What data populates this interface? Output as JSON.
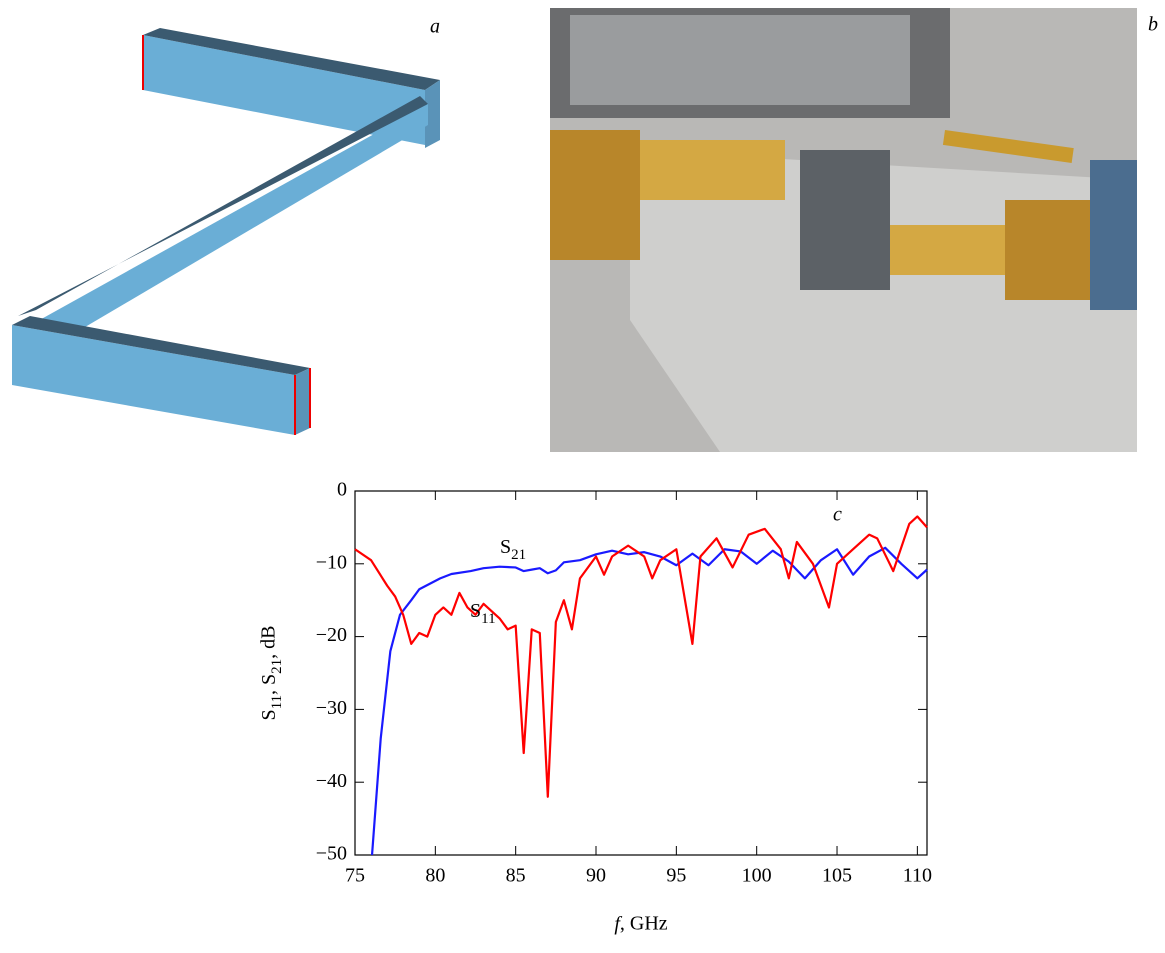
{
  "panel_labels": [
    "a",
    "b"
  ],
  "chart_data": {
    "type": "line",
    "label": "c",
    "xlabel": "f, GHz",
    "ylabel": "S11, S21, dB",
    "xlim": [
      75,
      110.6
    ],
    "ylim": [
      -50,
      0
    ],
    "xticks": [
      75,
      80,
      85,
      90,
      95,
      100,
      105,
      110
    ],
    "yticks": [
      {
        "value": -50,
        "label": "−50"
      },
      {
        "value": -40,
        "label": "−40"
      },
      {
        "value": -30,
        "label": "−30"
      },
      {
        "value": -20,
        "label": "−20"
      },
      {
        "value": -10,
        "label": "−10"
      },
      0
    ],
    "series": [
      {
        "name": "S21",
        "color": "#1a1aff",
        "x": [
          76.06,
          76.6,
          77.2,
          77.8,
          78.5,
          79,
          80.3,
          81,
          82.2,
          83,
          84,
          85,
          85.5,
          86,
          86.5,
          87,
          87.5,
          88,
          89,
          90,
          91,
          92,
          93,
          94,
          95,
          96,
          97,
          98,
          99,
          100,
          101,
          102,
          103,
          104,
          105,
          106,
          107,
          108,
          109,
          110,
          110.6
        ],
        "values": [
          -50,
          -34,
          -22,
          -17,
          -15,
          -13.5,
          -12,
          -11.4,
          -11,
          -10.6,
          -10.4,
          -10.5,
          -11,
          -10.8,
          -10.6,
          -11.3,
          -10.9,
          -9.8,
          -9.5,
          -8.7,
          -8.2,
          -8.7,
          -8.4,
          -9,
          -10.2,
          -8.6,
          -10.2,
          -8,
          -8.3,
          -10,
          -8.2,
          -9.7,
          -12,
          -9.5,
          -8,
          -11.5,
          -9,
          -7.8,
          -10,
          -12,
          -10.8
        ]
      },
      {
        "name": "S11",
        "color": "#ff0000",
        "x": [
          75,
          76,
          77,
          77.5,
          78,
          78.5,
          79,
          79.5,
          80,
          80.5,
          81,
          81.5,
          82,
          82.5,
          83,
          84,
          84.5,
          85,
          85.5,
          86,
          86.5,
          87,
          87.5,
          88,
          88.5,
          89,
          90,
          90.5,
          91,
          92,
          93,
          93.5,
          94,
          95,
          96,
          96.5,
          97.5,
          98.5,
          99.5,
          100.5,
          101.5,
          102,
          102.5,
          103.5,
          104.5,
          105,
          106,
          107,
          107.5,
          108.5,
          109.5,
          110,
          110.6
        ],
        "values": [
          -8,
          -9.5,
          -13,
          -14.5,
          -17,
          -21,
          -19.5,
          -20,
          -17,
          -16,
          -17,
          -14,
          -16,
          -17,
          -15.5,
          -17.5,
          -19,
          -18.5,
          -36,
          -19,
          -19.5,
          -42,
          -18,
          -15,
          -19,
          -12,
          -9,
          -11.5,
          -9,
          -7.5,
          -9,
          -12,
          -9.5,
          -8,
          -21,
          -9,
          -6.5,
          -10.5,
          -6,
          -5.2,
          -8,
          -12,
          -7,
          -10,
          -16,
          -10,
          -8,
          -6,
          -6.5,
          -11,
          -4.5,
          -3.5,
          -5
        ]
      }
    ]
  }
}
